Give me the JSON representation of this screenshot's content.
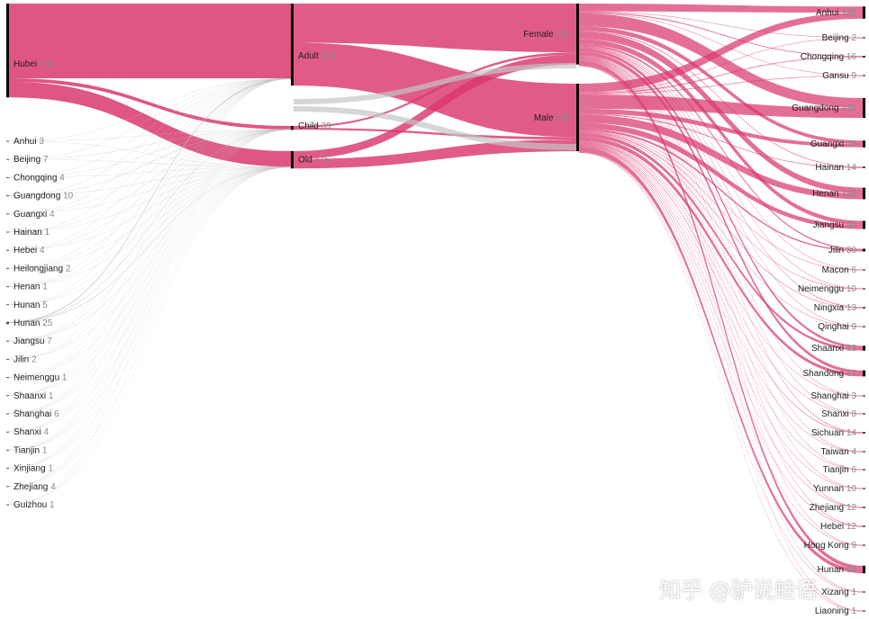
{
  "watermark": "知乎 @驴说蛙语",
  "colors": {
    "main": "#d9376e",
    "gray": "#c4c4c4",
    "node": "#000000"
  },
  "chart_data": {
    "type": "sankey",
    "source_nodes": [
      {
        "name": "Hubei",
        "value": 948
      },
      {
        "name": "Anhui",
        "value": 3
      },
      {
        "name": "Beijing",
        "value": 7
      },
      {
        "name": "Chongqing",
        "value": 4
      },
      {
        "name": "Guangdong",
        "value": 10
      },
      {
        "name": "Guangxi",
        "value": 4
      },
      {
        "name": "Hainan",
        "value": 1
      },
      {
        "name": "Hebei",
        "value": 4
      },
      {
        "name": "Heilongjiang",
        "value": 2
      },
      {
        "name": "Henan",
        "value": 1
      },
      {
        "name": "Hunan",
        "value": 5
      },
      {
        "name": "Hunan",
        "value": 25
      },
      {
        "name": "Jiangsu",
        "value": 7
      },
      {
        "name": "Jilin",
        "value": 2
      },
      {
        "name": "Neimenggu",
        "value": 1
      },
      {
        "name": "Shaanxi",
        "value": 1
      },
      {
        "name": "Shanghai",
        "value": 6
      },
      {
        "name": "Shanxi",
        "value": 4
      },
      {
        "name": "Tianjin",
        "value": 1
      },
      {
        "name": "Xinjiang",
        "value": 1
      },
      {
        "name": "Zhejiang",
        "value": 4
      },
      {
        "name": "Guizhou",
        "value": 1
      }
    ],
    "age_nodes": [
      {
        "name": "Adult",
        "value": 828
      },
      {
        "name": "Child",
        "value": 39
      },
      {
        "name": "Old",
        "value": 175
      }
    ],
    "gender_nodes": [
      {
        "name": "Female",
        "value": 494
      },
      {
        "name": "Male",
        "value": 548
      }
    ],
    "destination_nodes": [
      {
        "name": "Anhui",
        "value": 135
      },
      {
        "name": "Beijing",
        "value": 2
      },
      {
        "name": "Chongqing",
        "value": 16
      },
      {
        "name": "Gansu",
        "value": 9
      },
      {
        "name": "Guangdong",
        "value": 220
      },
      {
        "name": "Guangxi",
        "value": 75
      },
      {
        "name": "Hainan",
        "value": 14
      },
      {
        "name": "Henan",
        "value": 128
      },
      {
        "name": "Jiangsu",
        "value": 90
      },
      {
        "name": "Jilin",
        "value": 30
      },
      {
        "name": "Macon",
        "value": 6
      },
      {
        "name": "Neimenggu",
        "value": 10
      },
      {
        "name": "Ningxia",
        "value": 13
      },
      {
        "name": "Qinghai",
        "value": 9
      },
      {
        "name": "Shaanxi",
        "value": 53
      },
      {
        "name": "Shandong",
        "value": 67
      },
      {
        "name": "Shanghai",
        "value": 3
      },
      {
        "name": "Shanxi",
        "value": 8
      },
      {
        "name": "Sichuan",
        "value": 14
      },
      {
        "name": "Taiwan",
        "value": 4
      },
      {
        "name": "Tianjin",
        "value": 6
      },
      {
        "name": "Yunnan",
        "value": 10
      },
      {
        "name": "Zhejiang",
        "value": 12
      },
      {
        "name": "Hebei",
        "value": 12
      },
      {
        "name": "Hong Kong",
        "value": 9
      },
      {
        "name": "Hunan",
        "value": 84
      },
      {
        "name": "Xizang",
        "value": 1
      },
      {
        "name": "Liaoning",
        "value": 1
      }
    ],
    "links_hubei_to_age": [
      {
        "target": "Adult",
        "value": 755
      },
      {
        "target": "Child",
        "value": 35
      },
      {
        "target": "Old",
        "value": 158
      }
    ],
    "links_age_to_gender": [
      {
        "source": "Adult",
        "target": "Female",
        "value": 395
      },
      {
        "source": "Adult",
        "target": "Male",
        "value": 433
      },
      {
        "source": "Child",
        "target": "Female",
        "value": 19
      },
      {
        "source": "Child",
        "target": "Male",
        "value": 20
      },
      {
        "source": "Old",
        "target": "Female",
        "value": 80
      },
      {
        "source": "Old",
        "target": "Male",
        "value": 95
      }
    ]
  }
}
